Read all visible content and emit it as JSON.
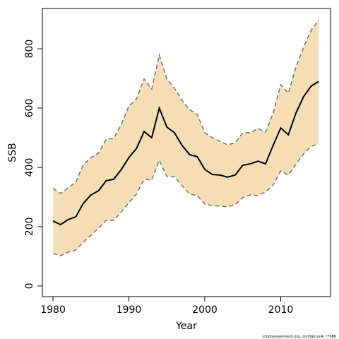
{
  "chart_data": {
    "type": "line",
    "xlabel": "Year",
    "ylabel": "SSB",
    "x": [
      1980,
      1981,
      1982,
      1983,
      1984,
      1985,
      1986,
      1987,
      1988,
      1989,
      1990,
      1991,
      1992,
      1993,
      1994,
      1995,
      1996,
      1997,
      1998,
      1999,
      2000,
      2001,
      2002,
      2003,
      2004,
      2005,
      2006,
      2007,
      2008,
      2009,
      2010,
      2011,
      2012,
      2013,
      2014,
      2015
    ],
    "values": [
      219,
      207,
      224,
      233,
      279,
      307,
      321,
      355,
      360,
      393,
      433,
      464,
      521,
      500,
      600,
      536,
      517,
      474,
      443,
      436,
      393,
      376,
      374,
      367,
      374,
      407,
      412,
      421,
      412,
      474,
      533,
      510,
      583,
      638,
      674,
      690
    ],
    "upper": [
      329,
      312,
      331,
      350,
      410,
      433,
      448,
      495,
      498,
      545,
      607,
      631,
      698,
      664,
      779,
      698,
      667,
      626,
      595,
      579,
      517,
      500,
      488,
      476,
      483,
      517,
      517,
      531,
      519,
      583,
      679,
      650,
      738,
      805,
      862,
      898
    ],
    "lower": [
      110,
      102,
      114,
      121,
      148,
      171,
      195,
      221,
      221,
      250,
      281,
      310,
      360,
      357,
      424,
      369,
      369,
      338,
      310,
      305,
      276,
      271,
      269,
      267,
      274,
      298,
      307,
      305,
      317,
      340,
      388,
      374,
      410,
      445,
      471,
      479
    ],
    "color": "#000000",
    "band_color": "#f5deb3",
    "band_line_color": "#707070",
    "xlim": [
      1978.6,
      2016.56
    ],
    "ylim": [
      -36,
      936
    ],
    "xticks": [
      1980,
      1990,
      2000,
      2010
    ],
    "yticks": [
      0,
      200,
      400,
      600,
      800
    ]
  },
  "footnote": "stockassessment.org, config/run/4, r7986"
}
